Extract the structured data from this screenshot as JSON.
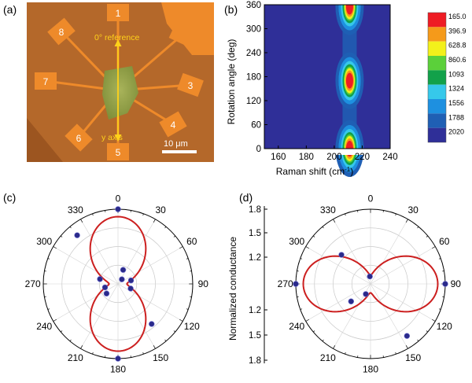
{
  "panels": {
    "a": {
      "label": "(a)",
      "electrodes": [
        "1",
        "2",
        "3",
        "4",
        "5",
        "6",
        "7",
        "8"
      ],
      "reference_label": "0° reference",
      "axis_label": "y axis",
      "scale_bar": "10 μm"
    },
    "b": {
      "label": "(b)"
    },
    "c": {
      "label": "(c)"
    },
    "d": {
      "label": "(d)"
    }
  },
  "chart_data": [
    {
      "panel": "b",
      "type": "heatmap",
      "title": "",
      "xlabel": "Raman shift (cm-1)",
      "ylabel": "Rotation angle (deg)",
      "xlim": [
        150,
        240
      ],
      "ylim": [
        0,
        360
      ],
      "x_ticks": [
        160,
        180,
        200,
        220,
        240
      ],
      "y_ticks": [
        0,
        60,
        120,
        180,
        240,
        300,
        360
      ],
      "peak_center_cm1": 211,
      "peak_angles_deg": [
        0,
        170,
        355
      ],
      "colorbar": {
        "levels": [
          "165.0",
          "396.9",
          "628.8",
          "860.6",
          "1093",
          "1324",
          "1556",
          "1788",
          "2020"
        ],
        "colors": [
          "#2f2f98",
          "#1f5fb4",
          "#1e90e0",
          "#36c8ea",
          "#12a14a",
          "#5bd03a",
          "#f3f01b",
          "#f59a1a",
          "#ee1c24"
        ]
      }
    },
    {
      "panel": "c",
      "type": "scatter",
      "polar": true,
      "angular_ticks": [
        "0",
        "30",
        "60",
        "90",
        "120",
        "150",
        "180",
        "210",
        "240",
        "270",
        "300",
        "330"
      ],
      "fit": "cos2",
      "fit_orientation_deg": 0,
      "fit_color": "#cc1f1f",
      "marker_color": "#2a2a8a",
      "points": [
        {
          "angle": 0,
          "r": 1.0
        },
        {
          "angle": 20,
          "r": 0.2
        },
        {
          "angle": 40,
          "r": 0.08
        },
        {
          "angle": 75,
          "r": 0.18
        },
        {
          "angle": 110,
          "r": 0.18
        },
        {
          "angle": 140,
          "r": 0.7
        },
        {
          "angle": 180,
          "r": 1.0
        },
        {
          "angle": 230,
          "r": 0.2
        },
        {
          "angle": 255,
          "r": 0.18
        },
        {
          "angle": 285,
          "r": 0.25
        },
        {
          "angle": 320,
          "r": 0.85
        }
      ]
    },
    {
      "panel": "d",
      "type": "scatter",
      "polar": true,
      "angular_ticks": [
        "0",
        "30",
        "60",
        "90",
        "120",
        "150",
        "180",
        "210",
        "240",
        "270",
        "300",
        "330"
      ],
      "radial_label": "Normalized conductance",
      "radial_ticks": [
        "1.8",
        "1.5",
        "1.2",
        "1.2",
        "1.5",
        "1.8"
      ],
      "fit": "cos2",
      "fit_orientation_deg": 90,
      "fit_color": "#cc1f1f",
      "marker_color": "#2a2a8a",
      "points": [
        {
          "angle": 90,
          "r": 1.0
        },
        {
          "angle": 145,
          "r": 0.85
        },
        {
          "angle": 205,
          "r": 0.15
        },
        {
          "angle": 228,
          "r": 0.35
        },
        {
          "angle": 270,
          "r": 1.0
        },
        {
          "angle": 315,
          "r": 0.55
        },
        {
          "angle": 355,
          "r": 0.1
        }
      ]
    }
  ]
}
